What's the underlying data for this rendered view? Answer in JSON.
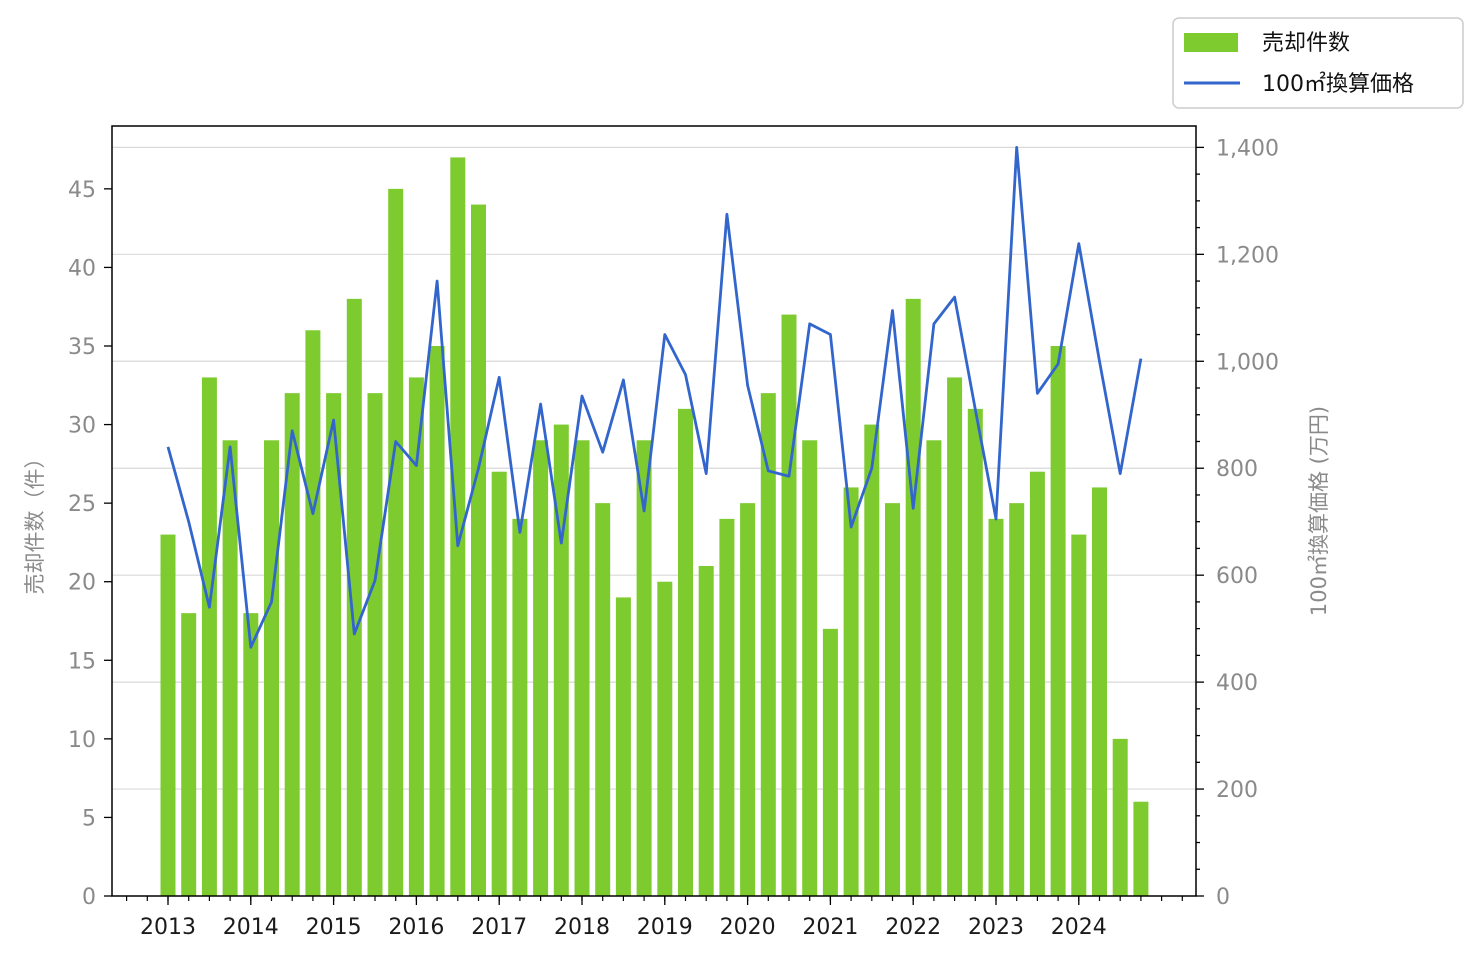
{
  "chart_data": {
    "type": "bar",
    "title": "",
    "x_tick_labels": [
      "2013",
      "2014",
      "2015",
      "2016",
      "2017",
      "2018",
      "2019",
      "2020",
      "2021",
      "2022",
      "2023",
      "2024"
    ],
    "ylabel_left": "売却件数（件）",
    "ylabel_right": "100㎡換算価格 (万円)",
    "ylim_left": [
      0,
      49
    ],
    "ylim_right": [
      0,
      1440
    ],
    "yticks_left": [
      0,
      5,
      10,
      15,
      20,
      25,
      30,
      35,
      40,
      45
    ],
    "yticks_right": [
      0,
      200,
      400,
      600,
      800,
      1000,
      1200,
      1400
    ],
    "ytick_labels_right": [
      "0",
      "200",
      "400",
      "600",
      "800",
      "1,000",
      "1,200",
      "1,400"
    ],
    "grid": "horizontal",
    "legend_position": "top-right (outside plot)",
    "colors": {
      "bars": "#7ecb30",
      "line": "#3366cc"
    },
    "series": [
      {
        "name": "売却件数",
        "kind": "bar",
        "axis": "left",
        "values": [
          23,
          18,
          33,
          29,
          18,
          29,
          32,
          36,
          32,
          38,
          32,
          45,
          33,
          35,
          47,
          44,
          27,
          24,
          29,
          30,
          29,
          25,
          19,
          29,
          20,
          31,
          21,
          24,
          25,
          32,
          37,
          29,
          17,
          26,
          30,
          25,
          38,
          29,
          33,
          31,
          24,
          25,
          27,
          35,
          23,
          26,
          10,
          6
        ]
      },
      {
        "name": "100㎡換算価格",
        "kind": "line",
        "axis": "right",
        "values": [
          840,
          700,
          540,
          840,
          465,
          550,
          870,
          715,
          890,
          490,
          590,
          850,
          805,
          1150,
          655,
          800,
          970,
          680,
          920,
          660,
          935,
          830,
          965,
          720,
          1050,
          975,
          790,
          1275,
          955,
          795,
          785,
          1070,
          1050,
          690,
          800,
          1095,
          725,
          1070,
          1120,
          910,
          705,
          1400,
          940,
          995,
          1220,
          1000,
          790,
          1005
        ]
      }
    ]
  }
}
